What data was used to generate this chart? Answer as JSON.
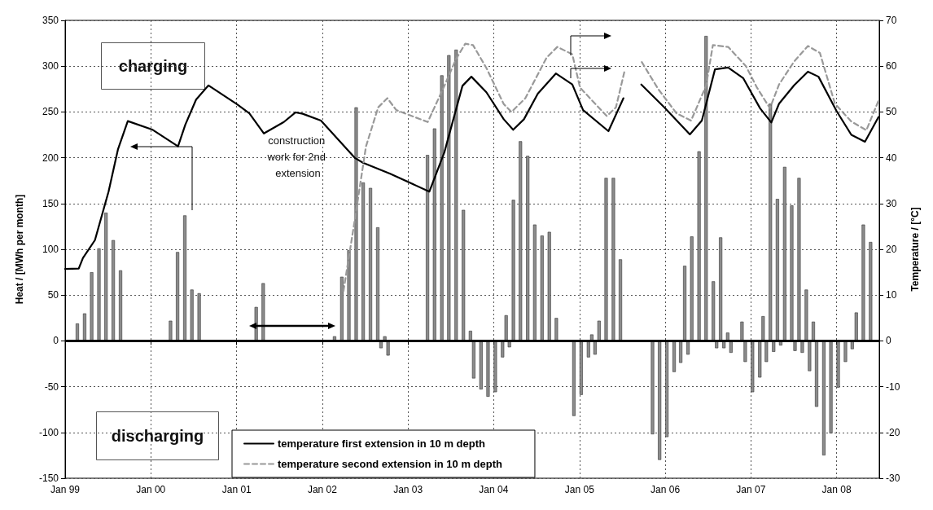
{
  "chart_data": {
    "type": "bar",
    "ylabel": "Heat / [MWh per month]",
    "y2label": "Temperature / [°C]",
    "annotations": [
      "charging",
      "discharging",
      "construction work for 2nd extension"
    ],
    "xlim": [
      "1999-01",
      "2008-07"
    ],
    "xticks": [
      {
        "value": "1999-01",
        "label": "Jan 99"
      },
      {
        "value": "2000-01",
        "label": "Jan 00"
      },
      {
        "value": "2001-01",
        "label": "Jan 01"
      },
      {
        "value": "2002-01",
        "label": "Jan 02"
      },
      {
        "value": "2003-01",
        "label": "Jan 03"
      },
      {
        "value": "2004-01",
        "label": "Jan 04"
      },
      {
        "value": "2005-01",
        "label": "Jan 05"
      },
      {
        "value": "2006-01",
        "label": "Jan 06"
      },
      {
        "value": "2007-01",
        "label": "Jan 07"
      },
      {
        "value": "2008-01",
        "label": "Jan 08"
      }
    ],
    "ylim": [
      -150,
      350
    ],
    "yticks": [
      -150,
      -100,
      -50,
      0,
      50,
      100,
      150,
      200,
      250,
      300,
      350
    ],
    "y2lim": [
      -30,
      70
    ],
    "y2ticks": [
      -30,
      -20,
      -10,
      0,
      10,
      20,
      30,
      40,
      50,
      60,
      70
    ],
    "grid": true,
    "legend": "bottom",
    "marker": "none",
    "ref_lines": [
      {
        "axis": "y",
        "value": 0,
        "color": "#000000",
        "line_style": "solid"
      }
    ],
    "series": [
      {
        "color": "#8c8c8c",
        "x": [
          "1999-03",
          "1999-04",
          "1999-05",
          "1999-06",
          "1999-07",
          "1999-08",
          "1999-09",
          "2000-04",
          "2000-05",
          "2000-06",
          "2000-07",
          "2000-08",
          "2001-04",
          "2001-05",
          "2002-03",
          "2002-04",
          "2002-05",
          "2002-06",
          "2002-07",
          "2002-08",
          "2002-09",
          "2002-10",
          "2003-04",
          "2003-05",
          "2003-06",
          "2003-07",
          "2003-08",
          "2003-09",
          "2003-10",
          "2004-03",
          "2004-04",
          "2004-05",
          "2004-06",
          "2004-07",
          "2004-08",
          "2004-09",
          "2004-10",
          "2005-03",
          "2005-04",
          "2005-05",
          "2005-06",
          "2005-07",
          "2006-04",
          "2006-05",
          "2006-06",
          "2006-07",
          "2006-08",
          "2006-09",
          "2006-10",
          "2006-12",
          "2007-03",
          "2007-04",
          "2007-05",
          "2007-06",
          "2007-07",
          "2007-08",
          "2007-09",
          "2007-10",
          "2008-04",
          "2008-05",
          "2008-06"
        ],
        "values": [
          19,
          30,
          75,
          101,
          140,
          110,
          77,
          22,
          97,
          137,
          56,
          52,
          37,
          63,
          5,
          70,
          99,
          255,
          173,
          167,
          124,
          5,
          203,
          232,
          290,
          312,
          318,
          143,
          11,
          28,
          154,
          218,
          202,
          127,
          115,
          119,
          25,
          7,
          22,
          178,
          178,
          89,
          82,
          114,
          207,
          333,
          65,
          113,
          9,
          21,
          27,
          259,
          155,
          190,
          148,
          178,
          56,
          21,
          31,
          127,
          108
        ]
      },
      {
        "color": "#8c8c8c",
        "x": [
          "2002-09",
          "2002-10",
          "2003-10",
          "2003-11",
          "2003-12",
          "2004-01",
          "2004-02",
          "2004-03",
          "2004-12",
          "2005-01",
          "2005-02",
          "2005-03",
          "2005-11",
          "2005-12",
          "2006-01",
          "2006-02",
          "2006-03",
          "2006-04",
          "2006-08",
          "2006-09",
          "2006-10",
          "2006-12",
          "2007-01",
          "2007-02",
          "2007-03",
          "2007-04",
          "2007-05",
          "2007-07",
          "2007-08",
          "2007-09",
          "2007-10",
          "2007-11",
          "2007-12",
          "2008-01",
          "2008-02",
          "2008-03"
        ],
        "values": [
          -8,
          -16,
          -41,
          -53,
          -61,
          -56,
          -18,
          -7,
          -82,
          -59,
          -18,
          -15,
          -102,
          -130,
          -105,
          -34,
          -24,
          -15,
          -8,
          -8,
          -13,
          -23,
          -56,
          -40,
          -23,
          -12,
          -5,
          -11,
          -13,
          -33,
          -72,
          -125,
          -101,
          -51,
          -23,
          -9
        ]
      },
      {
        "type": "line",
        "axis": "y2",
        "name": "temperature first extension in 10 m depth",
        "color": "#000000",
        "line_style": "solid",
        "x": [
          "1999-01-01",
          "1999-02-28",
          "1999-03-18",
          "1999-05-08",
          "1999-07-05",
          "1999-08-14",
          "1999-09-25",
          "2000-01-09",
          "2000-04-26",
          "2000-05-27",
          "2000-07-12",
          "2000-09-03",
          "2001-01-02",
          "2001-02-24",
          "2001-04-27",
          "2001-07-21",
          "2001-09-09",
          "2001-10-09",
          "2001-12-26",
          "2002-05-21",
          "2002-06-23",
          "2002-10-17",
          "2003-04-02",
          "2003-06-05",
          "2003-08-21",
          "2003-09-28",
          "2003-12-01",
          "2004-02-13",
          "2004-03-24",
          "2004-05-09",
          "2004-07-07",
          "2004-09-22",
          "2004-12-01",
          "2005-01-16",
          "2005-05-04",
          "2005-07-07",
          "2005-08-15",
          "2005-09-21",
          "2005-12-28",
          "2006-04-16",
          "2006-06-06",
          "2006-08-01",
          "2006-09-26",
          "2006-11-29",
          "2007-02-09",
          "2007-03-29",
          "2007-05-01",
          "2007-07-04",
          "2007-09-01",
          "2007-10-16",
          "2008-01-01",
          "2008-03-04",
          "2008-05-01",
          "2008-06-28"
        ],
        "values": [
          15.7,
          15.8,
          18.1,
          22,
          32.6,
          41.8,
          48,
          46.1,
          42.5,
          47.2,
          52.7,
          55.8,
          51.7,
          49.7,
          45.3,
          47.8,
          49.9,
          49.6,
          48.1,
          39.9,
          38.9,
          36.5,
          32.6,
          41.2,
          55.7,
          57.7,
          54.3,
          48.4,
          46.1,
          48.4,
          54,
          58.4,
          56,
          50.4,
          45.8,
          53,
          null,
          56,
          51,
          45.1,
          48.1,
          59.3,
          59.7,
          57.4,
          50.8,
          47.7,
          51.8,
          55.8,
          58.8,
          57.7,
          50.2,
          45,
          43.5,
          48.9
        ]
      },
      {
        "type": "line",
        "axis": "y2",
        "name": "temperature second extension in 10 m depth",
        "color": "#999999",
        "line_style": "dashed",
        "x": [
          "2002-04-01",
          "2002-05-14",
          "2002-07-06",
          "2002-08-27",
          "2002-10-05",
          "2002-11-12",
          "2003-03-26",
          "2003-06-05",
          "2003-07-25",
          "2003-09-02",
          "2003-10-05",
          "2003-12-01",
          "2004-02-13",
          "2004-03-17",
          "2004-05-15",
          "2004-08-14",
          "2004-09-28",
          "2004-12-01",
          "2005-01-03",
          "2005-04-27",
          "2005-06-05",
          "2005-07-12",
          "2005-08-15",
          "2005-09-23",
          "2005-12-02",
          "2006-02-18",
          "2006-04-21",
          "2006-06-24",
          "2006-07-23",
          "2006-09-26",
          "2006-12-11",
          "2007-01-26",
          "2007-03-23",
          "2007-05-01",
          "2007-07-04",
          "2007-09-01",
          "2007-10-22",
          "2007-12-25",
          "2008-03-04",
          "2008-05-07",
          "2008-06-28"
        ],
        "values": [
          10.9,
          24.7,
          42.5,
          51,
          53,
          50.4,
          47.8,
          55.7,
          61.6,
          64.9,
          64.6,
          59.6,
          51.7,
          50,
          53,
          61.9,
          64.2,
          62.6,
          55.3,
          49.1,
          51,
          59,
          null,
          60.9,
          55,
          49.7,
          48.1,
          55.7,
          64.6,
          64.2,
          60,
          55.4,
          50.8,
          56,
          61,
          64.4,
          62.9,
          51.8,
          47.9,
          46,
          52.5
        ]
      }
    ]
  }
}
